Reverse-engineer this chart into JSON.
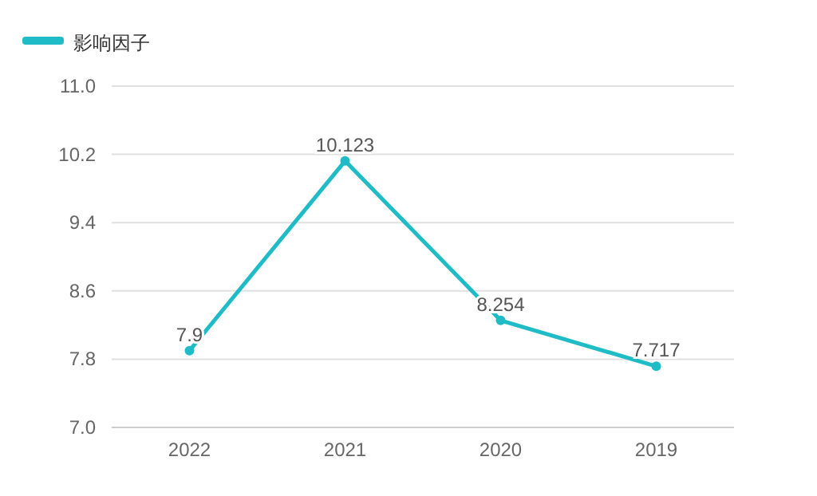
{
  "chart_data": {
    "type": "line",
    "categories": [
      "2022",
      "2021",
      "2020",
      "2019"
    ],
    "series": [
      {
        "name": "影响因子",
        "color": "#1fbcc7",
        "values": [
          7.9,
          10.123,
          8.254,
          7.717
        ]
      }
    ],
    "ylim": [
      7.0,
      11.0
    ],
    "yticks": [
      {
        "value": 7.0,
        "label": "7.0"
      },
      {
        "value": 7.8,
        "label": "7.8"
      },
      {
        "value": 8.6,
        "label": "8.6"
      },
      {
        "value": 9.4,
        "label": "9.4"
      },
      {
        "value": 10.2,
        "label": "10.2"
      },
      {
        "value": 11.0,
        "label": "11.0"
      }
    ],
    "grid": "y",
    "legend": "top left",
    "marker": "circle",
    "line_style": "solid",
    "data_labels": true
  }
}
